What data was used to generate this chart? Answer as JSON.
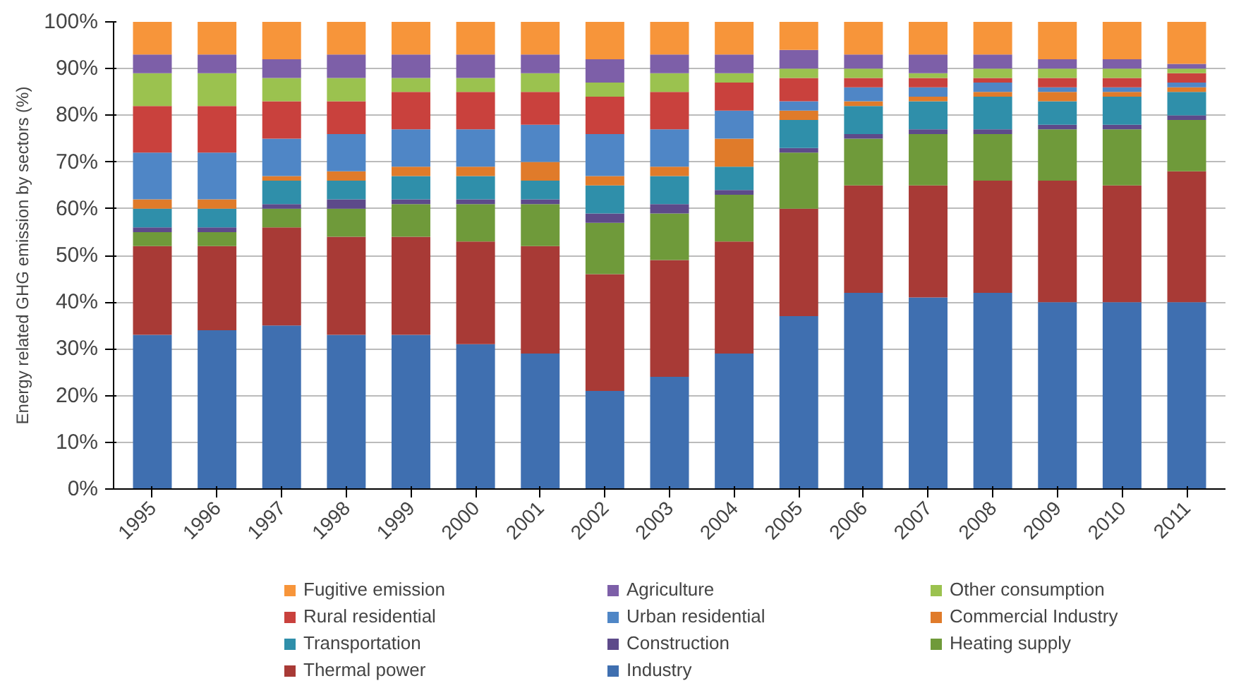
{
  "chart_data": {
    "type": "bar",
    "stacked": true,
    "ylabel": "Energy related GHG emission by sectors (%)",
    "categories": [
      "1995",
      "1996",
      "1997",
      "1998",
      "1999",
      "2000",
      "2001",
      "2002",
      "2003",
      "2004",
      "2005",
      "2006",
      "2007",
      "2008",
      "2009",
      "2010",
      "2011"
    ],
    "ylim": [
      0,
      100
    ],
    "yticks": [
      {
        "value": 0,
        "label": "0%"
      },
      {
        "value": 10,
        "label": "10%"
      },
      {
        "value": 20,
        "label": "20%"
      },
      {
        "value": 30,
        "label": "30%"
      },
      {
        "value": 40,
        "label": "40%"
      },
      {
        "value": 50,
        "label": "50%"
      },
      {
        "value": 60,
        "label": "60%"
      },
      {
        "value": 70,
        "label": "70%"
      },
      {
        "value": 80,
        "label": "80%"
      },
      {
        "value": 90,
        "label": "90%"
      },
      {
        "value": 100,
        "label": "100%"
      }
    ],
    "grid": "y",
    "legend": "bottom",
    "series": [
      {
        "name": "Industry",
        "color": "#3f6fb0",
        "values": [
          33,
          34,
          35,
          33,
          33,
          31,
          29,
          21,
          24,
          29,
          37,
          42,
          41,
          42,
          40,
          40,
          40
        ]
      },
      {
        "name": "Thermal power",
        "color": "#a83a36",
        "values": [
          19,
          18,
          21,
          21,
          21,
          22,
          23,
          25,
          25,
          24,
          23,
          23,
          24,
          24,
          26,
          25,
          28
        ]
      },
      {
        "name": "Heating supply",
        "color": "#6f9a3a",
        "values": [
          3,
          3,
          4,
          6,
          7,
          8,
          9,
          11,
          10,
          10,
          12,
          10,
          11,
          10,
          11,
          12,
          11
        ]
      },
      {
        "name": "Construction",
        "color": "#5d4a8a",
        "values": [
          1,
          1,
          1,
          2,
          1,
          1,
          1,
          2,
          2,
          1,
          1,
          1,
          1,
          1,
          1,
          1,
          1
        ]
      },
      {
        "name": "Transportation",
        "color": "#2f8faa",
        "values": [
          4,
          4,
          5,
          4,
          5,
          5,
          4,
          6,
          6,
          5,
          6,
          6,
          6,
          7,
          5,
          6,
          5
        ]
      },
      {
        "name": "Commercial Industry",
        "color": "#e07b2a",
        "values": [
          2,
          2,
          1,
          2,
          2,
          2,
          4,
          2,
          2,
          6,
          2,
          1,
          1,
          1,
          2,
          1,
          1
        ]
      },
      {
        "name": "Urban residential",
        "color": "#4f86c6",
        "values": [
          10,
          10,
          8,
          8,
          8,
          8,
          8,
          9,
          8,
          6,
          2,
          3,
          2,
          2,
          1,
          1,
          1
        ]
      },
      {
        "name": "Rural residential",
        "color": "#c9413d",
        "values": [
          10,
          10,
          8,
          7,
          8,
          8,
          7,
          8,
          8,
          6,
          5,
          2,
          2,
          1,
          2,
          2,
          2
        ]
      },
      {
        "name": "Other consumption",
        "color": "#9bc24f",
        "values": [
          7,
          7,
          5,
          5,
          3,
          3,
          4,
          3,
          4,
          2,
          2,
          2,
          1,
          2,
          2,
          2,
          1
        ]
      },
      {
        "name": "Agriculture",
        "color": "#7d5fa8",
        "values": [
          4,
          4,
          4,
          5,
          5,
          5,
          4,
          5,
          4,
          4,
          4,
          3,
          4,
          3,
          2,
          2,
          1
        ]
      },
      {
        "name": "Fugitive emission",
        "color": "#f7953a",
        "values": [
          7,
          7,
          8,
          7,
          7,
          7,
          7,
          8,
          7,
          7,
          6,
          7,
          7,
          7,
          8,
          8,
          9
        ]
      }
    ]
  }
}
